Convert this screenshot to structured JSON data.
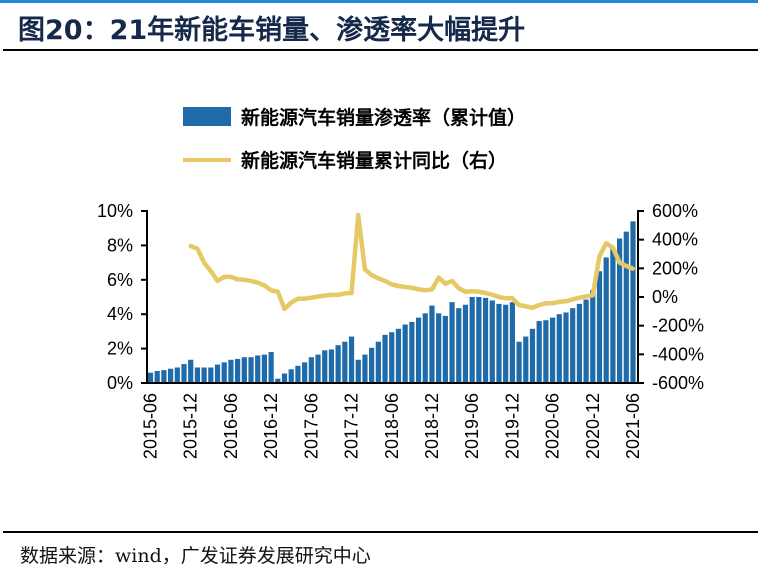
{
  "title": "图20：21年新能车销量、渗透率大幅提升",
  "source": "数据来源：wind，广发证券发展研究中心",
  "colors": {
    "bar": "#1f6aa8",
    "line": "#e6c865",
    "title": "#17294a",
    "accent_line": "#1f8ad6"
  },
  "chart_data": {
    "type": "bar+line",
    "title": "",
    "legend_position": "top-center",
    "grid": false,
    "x_tick_labels": [
      "2015-06",
      "2015-12",
      "2016-06",
      "2016-12",
      "2017-06",
      "2017-12",
      "2018-06",
      "2018-12",
      "2019-06",
      "2019-12",
      "2020-06",
      "2020-12",
      "2021-06"
    ],
    "y_left": {
      "ylim": [
        0,
        10
      ],
      "ticks": [
        "0%",
        "2%",
        "4%",
        "6%",
        "8%",
        "10%"
      ]
    },
    "y_right": {
      "ylim": [
        -600,
        600
      ],
      "ticks": [
        "-600%",
        "-400%",
        "-200%",
        "0%",
        "200%",
        "400%",
        "600%"
      ]
    },
    "x_start": "2015-06",
    "series": [
      {
        "name": "新能源汽车销量渗透率（累计值）",
        "type": "bar",
        "axis": "left",
        "unit": "%",
        "values": [
          0.6,
          0.7,
          0.75,
          0.83,
          0.9,
          1.1,
          1.35,
          0.9,
          0.9,
          0.9,
          1.07,
          1.2,
          1.35,
          1.4,
          1.5,
          1.5,
          1.6,
          1.65,
          1.8,
          0.25,
          0.55,
          0.8,
          1.0,
          1.2,
          1.5,
          1.65,
          1.9,
          1.95,
          2.2,
          2.4,
          2.7,
          1.35,
          1.65,
          2.05,
          2.4,
          2.8,
          2.95,
          3.15,
          3.4,
          3.55,
          3.8,
          4.05,
          4.5,
          4.05,
          3.9,
          4.7,
          4.35,
          4.55,
          5.0,
          5.0,
          4.95,
          4.8,
          4.6,
          4.55,
          4.7,
          2.4,
          2.7,
          3.15,
          3.6,
          3.65,
          3.8,
          4.0,
          4.1,
          4.35,
          4.6,
          4.85,
          5.4,
          6.5,
          7.3,
          7.8,
          8.4,
          8.8,
          9.4
        ]
      },
      {
        "name": "新能源汽车销量累计同比（右）",
        "type": "line",
        "axis": "right",
        "unit": "%",
        "values": [
          null,
          null,
          null,
          null,
          null,
          null,
          356,
          337,
          240,
          181,
          112,
          140,
          140,
          123,
          120,
          112,
          100,
          81,
          47,
          37,
          -84,
          -40,
          -12,
          -12,
          -5,
          3,
          10,
          15,
          15,
          25,
          28,
          572,
          193,
          153,
          130,
          112,
          88,
          77,
          70,
          65,
          53,
          47,
          53,
          135,
          93,
          112,
          60,
          37,
          40,
          37,
          28,
          16,
          0,
          -9,
          -9,
          -56,
          -65,
          -75,
          -56,
          -44,
          -44,
          -33,
          -30,
          -16,
          -5,
          5,
          12,
          286,
          375,
          344,
          240,
          216,
          198
        ]
      }
    ]
  }
}
